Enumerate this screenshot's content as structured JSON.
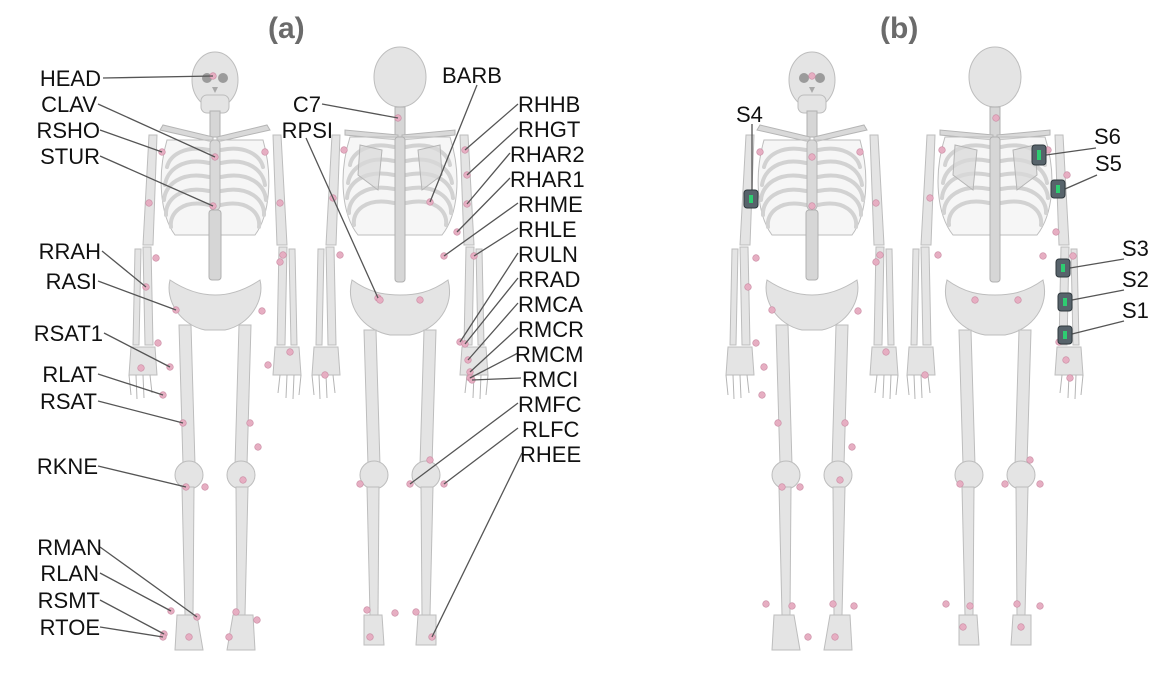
{
  "panels": [
    {
      "id": "a",
      "title": "(a)"
    },
    {
      "id": "b",
      "title": "(b)"
    }
  ],
  "panel_a": {
    "left_labels": [
      "HEAD",
      "CLAV",
      "RSHO",
      "STUR",
      "RRAH",
      "RASI",
      "RSAT1",
      "RLAT",
      "RSAT",
      "RKNE",
      "RMAN",
      "RLAN",
      "RSMT",
      "RTOE"
    ],
    "mid_labels": [
      "C7",
      "RPSI",
      "BARB"
    ],
    "right_labels": [
      "RHHB",
      "RHGT",
      "RHAR2",
      "RHAR1",
      "RHME",
      "RHLE",
      "RULN",
      "RRAD",
      "RMCA",
      "RMCR",
      "RMCM",
      "RMCI",
      "RMFC",
      "RLFC",
      "RHEE"
    ]
  },
  "panel_b": {
    "sensor_labels": [
      "S4",
      "S6",
      "S5",
      "S3",
      "S2",
      "S1"
    ]
  },
  "colors": {
    "marker": "#e6aec2",
    "bone": "#e4e4e4",
    "sensor": "#57636b",
    "sensor_led": "#2ecc71",
    "panel_title": "#6b6b6b"
  }
}
